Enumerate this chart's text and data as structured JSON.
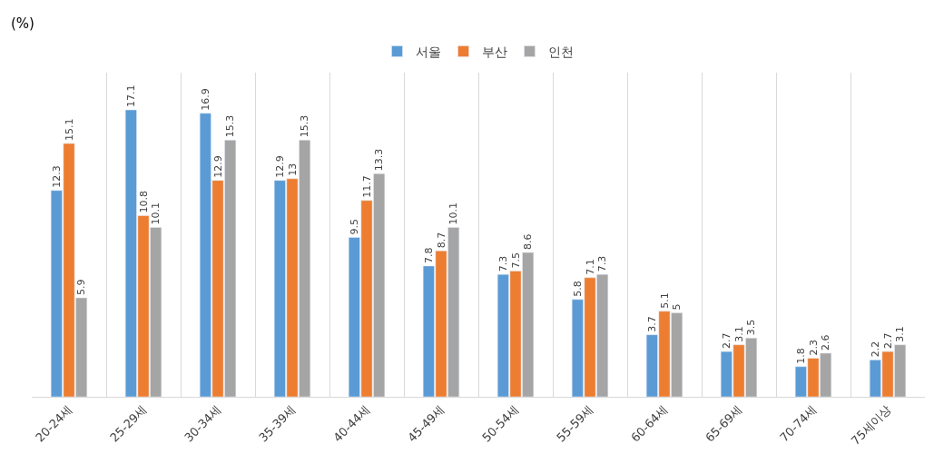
{
  "chart_data": {
    "type": "bar",
    "annotations": [
      "(%)"
    ],
    "categories": [
      "20-24세",
      "25-29세",
      "30-34세",
      "35-39세",
      "40-44세",
      "45-49세",
      "50-54세",
      "55-59세",
      "60-64세",
      "65-69세",
      "70-74세",
      "75세이상"
    ],
    "series": [
      {
        "name": "서울",
        "color": "#5b9bd5",
        "values": [
          12.3,
          17.1,
          16.9,
          12.9,
          9.5,
          7.8,
          7.3,
          5.8,
          3.7,
          2.7,
          1.8,
          2.2
        ]
      },
      {
        "name": "부산",
        "color": "#ed7d31",
        "values": [
          15.1,
          10.8,
          12.9,
          13,
          11.7,
          8.7,
          7.5,
          7.1,
          5.1,
          3.1,
          2.3,
          2.7
        ]
      },
      {
        "name": "인천",
        "color": "#a5a5a5",
        "values": [
          5.9,
          10.1,
          15.3,
          15.3,
          13.3,
          10.1,
          8.6,
          7.3,
          5,
          3.5,
          2.6,
          3.1
        ]
      }
    ],
    "data_labels": true,
    "grid": "x",
    "legend": "top",
    "tick_labels": "x"
  }
}
